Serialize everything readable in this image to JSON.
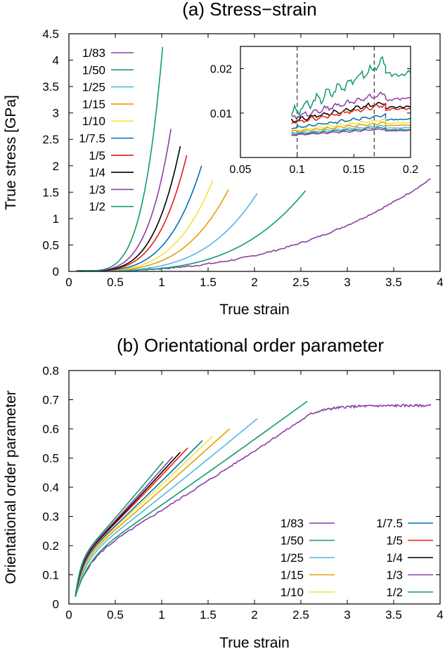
{
  "colors": {
    "purple": "#8d3ea6",
    "green": "#109a6e",
    "lightblue": "#56b4e9",
    "orange": "#e69f00",
    "yellow": "#f0e442",
    "blue": "#0072b2",
    "red": "#e51e10",
    "black": "#000000"
  },
  "legend_labels": [
    "1/83",
    "1/50",
    "1/25",
    "1/15",
    "1/10",
    "1/7.5",
    "1/5",
    "1/4",
    "1/3",
    "1/2"
  ],
  "chart_data": [
    {
      "type": "line",
      "title": "(a) Stress−strain",
      "xlabel": "True strain",
      "ylabel": "True stress [GPa]",
      "xlim": [
        0,
        4
      ],
      "ylim": [
        0,
        4.5
      ],
      "xticks": [
        "0",
        "0.5",
        "1",
        "1.5",
        "2",
        "2.5",
        "3",
        "3.5",
        "4"
      ],
      "yticks": [
        "0",
        "0.5",
        "1",
        "1.5",
        "2",
        "2.5",
        "3",
        "3.5",
        "4",
        "4.5"
      ],
      "legend_position": "top-left",
      "series": [
        {
          "name": "1/83",
          "color": "purple",
          "end_x": 3.9,
          "end_y": 1.75,
          "power": 3.2
        },
        {
          "name": "1/50",
          "color": "green",
          "end_x": 2.55,
          "end_y": 1.53,
          "power": 3.5
        },
        {
          "name": "1/25",
          "color": "lightblue",
          "end_x": 2.03,
          "end_y": 1.48,
          "power": 3.6
        },
        {
          "name": "1/15",
          "color": "orange",
          "end_x": 1.72,
          "end_y": 1.55,
          "power": 3.6
        },
        {
          "name": "1/10",
          "color": "yellow",
          "end_x": 1.55,
          "end_y": 1.72,
          "power": 3.7
        },
        {
          "name": "1/7.5",
          "color": "blue",
          "end_x": 1.43,
          "end_y": 2.0,
          "power": 3.8
        },
        {
          "name": "1/5",
          "color": "red",
          "end_x": 1.27,
          "end_y": 2.2,
          "power": 3.9
        },
        {
          "name": "1/4",
          "color": "black",
          "end_x": 1.2,
          "end_y": 2.37,
          "power": 4.0
        },
        {
          "name": "1/3",
          "color": "purple",
          "end_x": 1.1,
          "end_y": 2.7,
          "power": 4.1
        },
        {
          "name": "1/2",
          "color": "green",
          "end_x": 1.01,
          "end_y": 4.25,
          "power": 4.4
        }
      ],
      "inset": {
        "xlim": [
          0.05,
          0.2
        ],
        "ylim": [
          0,
          0.025
        ],
        "xticks": [
          "0.05",
          "0.1",
          "0.15",
          "0.2"
        ],
        "yticks": [
          "0.01",
          "0.02"
        ],
        "vlines": [
          0.1,
          0.168
        ],
        "series": [
          {
            "name": "1/2",
            "color": "green",
            "y0": 0.0098,
            "y1": 0.0215,
            "after_drop": 0.0185
          },
          {
            "name": "1/3",
            "color": "purple",
            "y0": 0.009,
            "y1": 0.0145,
            "after_drop": 0.013
          },
          {
            "name": "1/4",
            "color": "black",
            "y0": 0.0082,
            "y1": 0.0125,
            "after_drop": 0.0112
          },
          {
            "name": "1/5",
            "color": "red",
            "y0": 0.0078,
            "y1": 0.0118,
            "after_drop": 0.0108
          },
          {
            "name": "1/7.5",
            "color": "blue",
            "y0": 0.0066,
            "y1": 0.0095,
            "after_drop": 0.0085
          },
          {
            "name": "1/10",
            "color": "yellow",
            "y0": 0.006,
            "y1": 0.0085,
            "after_drop": 0.0077
          },
          {
            "name": "1/15",
            "color": "orange",
            "y0": 0.0058,
            "y1": 0.0078,
            "after_drop": 0.0072
          },
          {
            "name": "1/25",
            "color": "lightblue",
            "y0": 0.0054,
            "y1": 0.0072,
            "after_drop": 0.0066
          },
          {
            "name": "1/50",
            "color": "green",
            "y0": 0.0052,
            "y1": 0.0068,
            "after_drop": 0.0062
          },
          {
            "name": "1/83",
            "color": "purple",
            "y0": 0.005,
            "y1": 0.0064,
            "after_drop": 0.006
          }
        ]
      }
    },
    {
      "type": "line",
      "title": "(b) Orientational order parameter",
      "xlabel": "True strain",
      "ylabel": "Orientational order parameter",
      "xlim": [
        0,
        4
      ],
      "ylim": [
        0,
        0.8
      ],
      "xticks": [
        "0",
        "0.5",
        "1",
        "1.5",
        "2",
        "2.5",
        "3",
        "3.5",
        "4"
      ],
      "yticks": [
        "0",
        "0.1",
        "0.2",
        "0.3",
        "0.4",
        "0.5",
        "0.6",
        "0.7",
        "0.8"
      ],
      "legend_position": "bottom-right",
      "legend_columns": [
        [
          "1/83",
          "1/50",
          "1/25",
          "1/15",
          "1/10"
        ],
        [
          "1/7.5",
          "1/5",
          "1/4",
          "1/3",
          "1/2"
        ]
      ],
      "series": [
        {
          "name": "1/83",
          "color": "purple",
          "end_x": 3.9,
          "end_y": 0.68,
          "plateau_start": 2.6,
          "plateau_y": 0.65
        },
        {
          "name": "1/50",
          "color": "green",
          "end_x": 2.57,
          "end_y": 0.695
        },
        {
          "name": "1/25",
          "color": "lightblue",
          "end_x": 2.03,
          "end_y": 0.635
        },
        {
          "name": "1/15",
          "color": "orange",
          "end_x": 1.73,
          "end_y": 0.6
        },
        {
          "name": "1/10",
          "color": "yellow",
          "end_x": 1.55,
          "end_y": 0.575
        },
        {
          "name": "1/7.5",
          "color": "blue",
          "end_x": 1.44,
          "end_y": 0.56
        },
        {
          "name": "1/5",
          "color": "red",
          "end_x": 1.28,
          "end_y": 0.535
        },
        {
          "name": "1/4",
          "color": "black",
          "end_x": 1.2,
          "end_y": 0.52
        },
        {
          "name": "1/3",
          "color": "purple",
          "end_x": 1.12,
          "end_y": 0.505
        },
        {
          "name": "1/2",
          "color": "green",
          "end_x": 1.02,
          "end_y": 0.49
        }
      ]
    }
  ]
}
